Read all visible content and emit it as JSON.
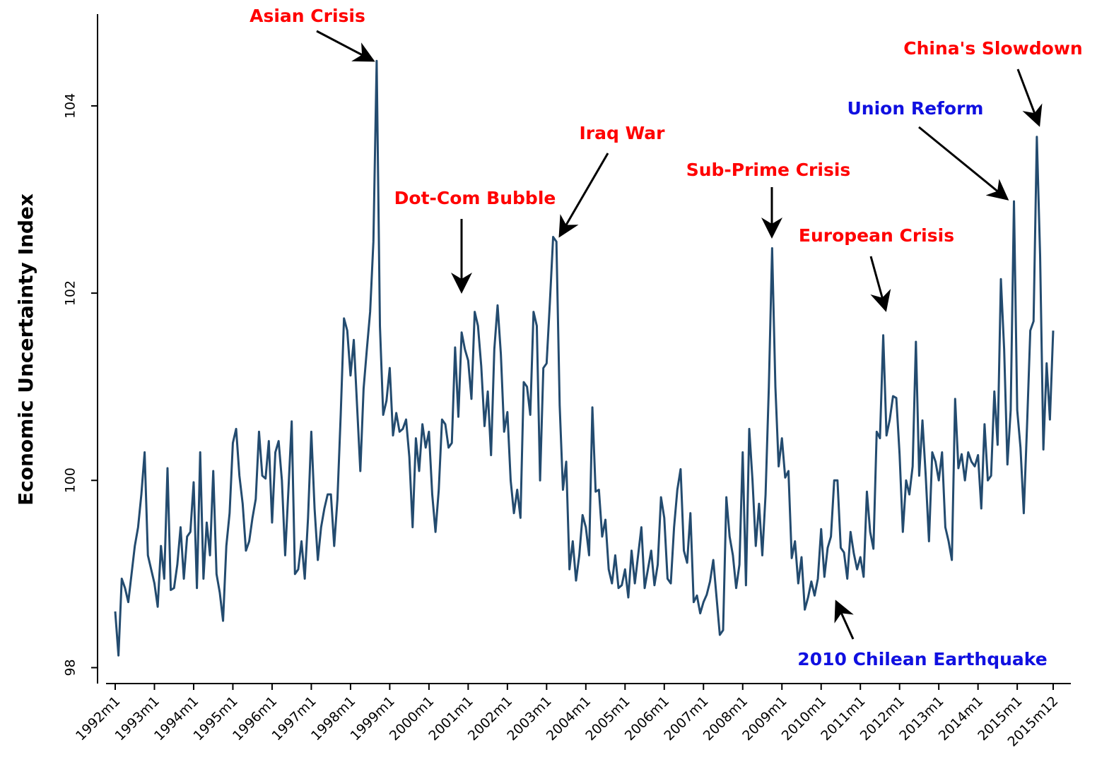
{
  "chart_data": {
    "type": "line",
    "y_label": "Economic Uncertainty Index",
    "color": "#234b6f",
    "categories": [
      "1992m1",
      null,
      null,
      null,
      null,
      null,
      null,
      null,
      null,
      null,
      null,
      null,
      "1993m1",
      null,
      null,
      null,
      null,
      null,
      null,
      null,
      null,
      null,
      null,
      null,
      "1994m1",
      null,
      null,
      null,
      null,
      null,
      null,
      null,
      null,
      null,
      null,
      null,
      "1995m1",
      null,
      null,
      null,
      null,
      null,
      null,
      null,
      null,
      null,
      null,
      null,
      "1996m1",
      null,
      null,
      null,
      null,
      null,
      null,
      null,
      null,
      null,
      null,
      null,
      "1997m1",
      null,
      null,
      null,
      null,
      null,
      null,
      null,
      null,
      null,
      null,
      null,
      "1998m1",
      null,
      null,
      null,
      null,
      null,
      null,
      null,
      null,
      null,
      null,
      null,
      "1999m1",
      null,
      null,
      null,
      null,
      null,
      null,
      null,
      null,
      null,
      null,
      null,
      "2000m1",
      null,
      null,
      null,
      null,
      null,
      null,
      null,
      null,
      null,
      null,
      null,
      "2001m1",
      null,
      null,
      null,
      null,
      null,
      null,
      null,
      null,
      null,
      null,
      null,
      "2002m1",
      null,
      null,
      null,
      null,
      null,
      null,
      null,
      null,
      null,
      null,
      null,
      "2003m1",
      null,
      null,
      null,
      null,
      null,
      null,
      null,
      null,
      null,
      null,
      null,
      "2004m1",
      null,
      null,
      null,
      null,
      null,
      null,
      null,
      null,
      null,
      null,
      null,
      "2005m1",
      null,
      null,
      null,
      null,
      null,
      null,
      null,
      null,
      null,
      null,
      null,
      "2006m1",
      null,
      null,
      null,
      null,
      null,
      null,
      null,
      null,
      null,
      null,
      null,
      "2007m1",
      null,
      null,
      null,
      null,
      null,
      null,
      null,
      null,
      null,
      null,
      null,
      "2008m1",
      null,
      null,
      null,
      null,
      null,
      null,
      null,
      null,
      null,
      null,
      null,
      "2009m1",
      null,
      null,
      null,
      null,
      null,
      null,
      null,
      null,
      null,
      null,
      null,
      "2010m1",
      null,
      null,
      null,
      null,
      null,
      null,
      null,
      null,
      null,
      null,
      null,
      "2011m1",
      null,
      null,
      null,
      null,
      null,
      null,
      null,
      null,
      null,
      null,
      null,
      "2012m1",
      null,
      null,
      null,
      null,
      null,
      null,
      null,
      null,
      null,
      null,
      null,
      "2013m1",
      null,
      null,
      null,
      null,
      null,
      null,
      null,
      null,
      null,
      null,
      null,
      "2014m1",
      null,
      null,
      null,
      null,
      null,
      null,
      null,
      null,
      null,
      null,
      null,
      "2015m1",
      null,
      null,
      null,
      null,
      null,
      null,
      null,
      null,
      null,
      null,
      "2015m12"
    ],
    "values": [
      98.6,
      98.13,
      98.95,
      98.85,
      98.7,
      99.0,
      99.3,
      99.5,
      99.85,
      100.3,
      99.2,
      99.05,
      98.9,
      98.65,
      99.3,
      98.95,
      100.13,
      98.83,
      98.85,
      99.1,
      99.5,
      98.95,
      99.4,
      99.45,
      99.98,
      98.85,
      100.3,
      98.95,
      99.55,
      99.2,
      100.1,
      99.0,
      98.8,
      98.5,
      99.3,
      99.65,
      100.4,
      100.55,
      100.05,
      99.75,
      99.25,
      99.35,
      99.6,
      99.8,
      100.52,
      100.05,
      100.02,
      100.42,
      99.55,
      100.3,
      100.42,
      100.0,
      99.2,
      99.9,
      100.63,
      99.0,
      99.05,
      99.35,
      98.95,
      99.6,
      100.52,
      99.7,
      99.15,
      99.5,
      99.7,
      99.85,
      99.85,
      99.3,
      99.8,
      100.7,
      101.73,
      101.6,
      101.12,
      101.5,
      100.8,
      100.1,
      100.98,
      101.4,
      101.8,
      102.55,
      104.48,
      101.65,
      100.7,
      100.85,
      101.2,
      100.48,
      100.72,
      100.52,
      100.55,
      100.65,
      100.25,
      99.5,
      100.45,
      100.1,
      100.6,
      100.35,
      100.52,
      99.85,
      99.45,
      99.9,
      100.65,
      100.6,
      100.35,
      100.4,
      101.42,
      100.68,
      101.58,
      101.4,
      101.28,
      100.87,
      101.8,
      101.65,
      101.22,
      100.58,
      100.95,
      100.27,
      101.4,
      101.87,
      101.35,
      100.52,
      100.73,
      100.0,
      99.65,
      99.9,
      99.6,
      101.05,
      101.0,
      100.7,
      101.8,
      101.65,
      100.0,
      101.2,
      101.25,
      101.9,
      102.6,
      102.55,
      100.8,
      99.9,
      100.2,
      99.05,
      99.35,
      98.93,
      99.2,
      99.63,
      99.5,
      99.2,
      100.78,
      99.88,
      99.9,
      99.4,
      99.58,
      99.05,
      98.9,
      99.2,
      98.85,
      98.88,
      99.05,
      98.75,
      99.25,
      98.9,
      99.2,
      99.5,
      98.85,
      99.05,
      99.25,
      98.88,
      99.1,
      99.82,
      99.6,
      98.95,
      98.9,
      99.5,
      99.9,
      100.12,
      99.25,
      99.12,
      99.65,
      98.7,
      98.77,
      98.58,
      98.7,
      98.78,
      98.92,
      99.15,
      98.75,
      98.35,
      98.4,
      99.82,
      99.4,
      99.2,
      98.85,
      99.1,
      100.3,
      98.88,
      100.55,
      100.0,
      99.3,
      99.75,
      99.2,
      99.85,
      101.0,
      102.48,
      101.0,
      100.15,
      100.45,
      100.03,
      100.1,
      99.17,
      99.35,
      98.9,
      99.18,
      98.62,
      98.75,
      98.92,
      98.77,
      98.95,
      99.48,
      98.97,
      99.28,
      99.4,
      100.0,
      100.0,
      99.28,
      99.23,
      98.95,
      99.45,
      99.22,
      99.05,
      99.18,
      98.97,
      99.88,
      99.45,
      99.27,
      100.52,
      100.45,
      101.55,
      100.48,
      100.65,
      100.9,
      100.88,
      100.28,
      99.45,
      100.0,
      99.85,
      100.15,
      101.48,
      100.05,
      100.64,
      100.05,
      99.35,
      100.3,
      100.2,
      100.0,
      100.3,
      99.5,
      99.35,
      99.15,
      100.87,
      100.13,
      100.28,
      100.0,
      100.3,
      100.2,
      100.15,
      100.27,
      99.7,
      100.6,
      100.0,
      100.05,
      100.95,
      100.38,
      102.15,
      101.4,
      100.17,
      100.75,
      102.98,
      100.75,
      100.35,
      99.65,
      100.58,
      101.6,
      101.7,
      103.67,
      102.4,
      100.33,
      101.25,
      100.65,
      101.6
    ],
    "ylim": [
      97.83,
      104.98
    ],
    "yticks": [
      98,
      100,
      102,
      104
    ],
    "grid": false,
    "annotations": [
      {
        "text": "Asian Crisis",
        "color": "#ff0000"
      },
      {
        "text": "Dot-Com Bubble",
        "color": "#ff0000"
      },
      {
        "text": "Iraq War",
        "color": "#ff0000"
      },
      {
        "text": "Sub-Prime Crisis",
        "color": "#ff0000"
      },
      {
        "text": "European Crisis",
        "color": "#ff0000"
      },
      {
        "text": "Union Reform",
        "color": "#1010e0"
      },
      {
        "text": "China's Slowdown",
        "color": "#ff0000"
      },
      {
        "text": "2010 Chilean Earthquake",
        "color": "#1010e0"
      }
    ]
  }
}
